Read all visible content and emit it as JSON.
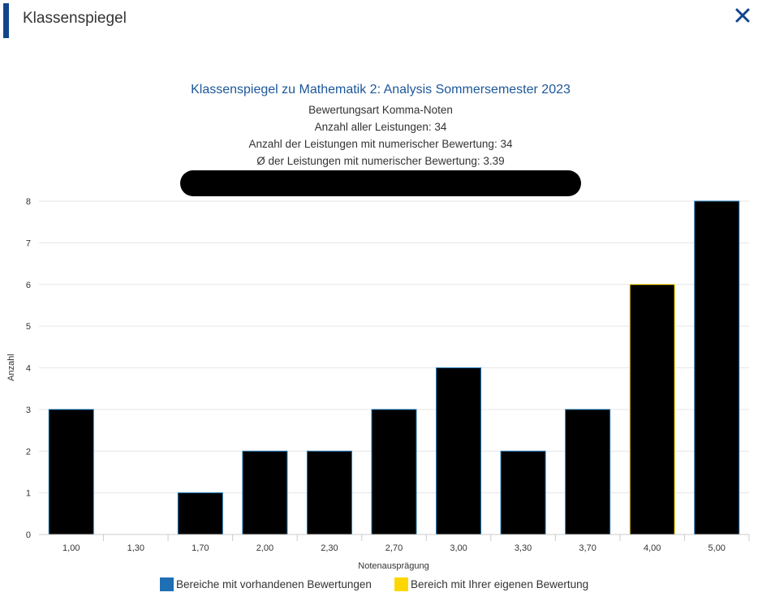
{
  "dialog": {
    "title": "Klassenspiegel"
  },
  "icons": {
    "close": "close-icon"
  },
  "colors": {
    "accent": "#12448c",
    "title": "#1d5799",
    "bar_fill": "#000000",
    "bar_border_existing": "#1f77b4",
    "bar_border_own": "#ffd700",
    "legend_existing": "#1f6fb4",
    "legend_own": "#ffd700",
    "redaction": "#000000"
  },
  "chart_data": {
    "type": "bar",
    "title": "Klassenspiegel zu Mathematik 2: Analysis Sommersemester 2023",
    "subtitle_lines": [
      "Bewertungsart Komma-Noten",
      "Anzahl aller Leistungen: 34",
      "Anzahl der Leistungen mit numerischer Bewertung: 34",
      "Ø der Leistungen mit numerischer Bewertung: 3.39"
    ],
    "redacted_line": true,
    "categories": [
      "1,00",
      "1,30",
      "1,70",
      "2,00",
      "2,30",
      "2,70",
      "3,00",
      "3,30",
      "3,70",
      "4,00",
      "5,00"
    ],
    "values": [
      3,
      0,
      1,
      2,
      2,
      3,
      4,
      2,
      3,
      6,
      8
    ],
    "own_grade_category": "4,00",
    "xlabel": "Notenausprägung",
    "ylabel": "Anzahl",
    "ylim": [
      0,
      8
    ],
    "yticks": [
      0,
      1,
      2,
      3,
      4,
      5,
      6,
      7,
      8
    ],
    "grid": true,
    "legend_position": "bottom",
    "legend": [
      {
        "label": "Bereiche mit vorhandenen Bewertungen",
        "color": "#1f6fb4"
      },
      {
        "label": "Bereich mit Ihrer eigenen Bewertung",
        "color": "#ffd700"
      }
    ]
  }
}
